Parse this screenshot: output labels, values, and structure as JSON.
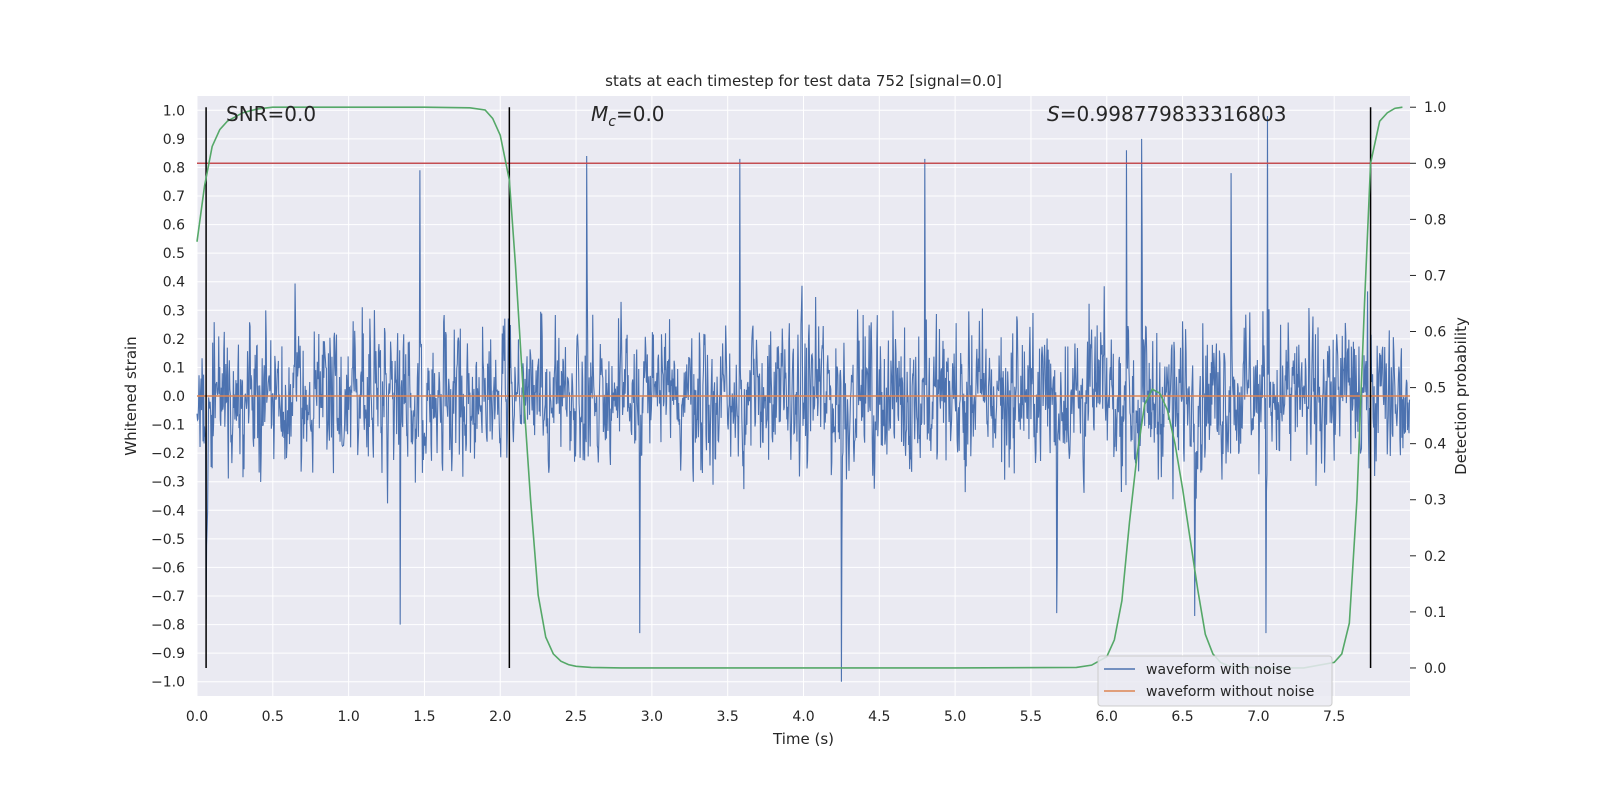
{
  "chart_data": {
    "type": "line",
    "title": "stats at each timestep for test data 752 [signal=0.0]",
    "xlabel": "Time (s)",
    "ylabel": "Whitened strain",
    "y2label": "Detection probability",
    "xlim": [
      0.0,
      8.0
    ],
    "ylim": [
      -1.05,
      1.05
    ],
    "y2lim": [
      -0.05,
      1.02
    ],
    "xticks": [
      0.0,
      0.5,
      1.0,
      1.5,
      2.0,
      2.5,
      3.0,
      3.5,
      4.0,
      4.5,
      5.0,
      5.5,
      6.0,
      6.5,
      7.0,
      7.5
    ],
    "yticks": [
      -1.0,
      -0.9,
      -0.8,
      -0.7,
      -0.6,
      -0.5,
      -0.4,
      -0.3,
      -0.2,
      -0.1,
      0.0,
      0.1,
      0.2,
      0.3,
      0.4,
      0.5,
      0.6,
      0.7,
      0.8,
      0.9,
      1.0
    ],
    "y2ticks": [
      0.0,
      0.1,
      0.2,
      0.3,
      0.4,
      0.5,
      0.6,
      0.7,
      0.8,
      0.9,
      1.0
    ],
    "grid": true,
    "legend_position": "lower right",
    "annotations": {
      "snr": "SNR=0.0",
      "mc_symbol": "M",
      "mc_sub": "c",
      "mc_value": "=0.0",
      "s_symbol": "S",
      "s_value": "=0.998779833316803"
    },
    "threshold": {
      "axis": "right",
      "value": 0.9
    },
    "vlines": [
      0.06,
      2.06,
      7.74
    ],
    "series": [
      {
        "name": "waveform with noise",
        "axis": "left",
        "color": "#4c72b0",
        "style": "noise",
        "approx_envelope": {
          "x": [
            0.0,
            8.0
          ],
          "typical_abs_max": 0.55
        },
        "peaks": [
          {
            "x": 0.06,
            "y": -0.78
          },
          {
            "x": 1.47,
            "y": 0.79
          },
          {
            "x": 1.34,
            "y": -0.8
          },
          {
            "x": 2.57,
            "y": 0.84
          },
          {
            "x": 2.92,
            "y": -0.83
          },
          {
            "x": 3.58,
            "y": 0.83
          },
          {
            "x": 4.25,
            "y": -1.0
          },
          {
            "x": 4.8,
            "y": 0.83
          },
          {
            "x": 6.13,
            "y": 0.86
          },
          {
            "x": 6.23,
            "y": 0.9
          },
          {
            "x": 6.82,
            "y": 0.78
          },
          {
            "x": 7.06,
            "y": 0.98
          },
          {
            "x": 7.05,
            "y": -0.83
          },
          {
            "x": 5.67,
            "y": -0.76
          },
          {
            "x": 6.58,
            "y": -0.77
          }
        ]
      },
      {
        "name": "waveform without noise",
        "axis": "left",
        "color": "#dd8452",
        "x": [
          0.0,
          8.0
        ],
        "y": [
          0.0,
          0.0
        ]
      },
      {
        "name": "",
        "axis": "right",
        "color": "#55a868",
        "x": [
          0.0,
          0.05,
          0.1,
          0.15,
          0.2,
          0.3,
          0.4,
          0.5,
          1.0,
          1.5,
          1.8,
          1.9,
          1.95,
          2.0,
          2.06,
          2.1,
          2.15,
          2.2,
          2.25,
          2.3,
          2.35,
          2.4,
          2.45,
          2.5,
          2.6,
          2.8,
          3.0,
          4.0,
          5.0,
          5.8,
          5.9,
          6.0,
          6.05,
          6.1,
          6.15,
          6.2,
          6.25,
          6.3,
          6.35,
          6.4,
          6.45,
          6.5,
          6.55,
          6.6,
          6.65,
          6.7,
          6.75,
          6.8,
          7.0,
          7.3,
          7.5,
          7.55,
          7.6,
          7.65,
          7.7,
          7.74,
          7.8,
          7.85,
          7.9,
          7.95
        ],
        "y": [
          0.76,
          0.86,
          0.93,
          0.96,
          0.975,
          0.99,
          0.997,
          1.0,
          1.0,
          1.0,
          0.999,
          0.995,
          0.98,
          0.95,
          0.87,
          0.72,
          0.5,
          0.3,
          0.13,
          0.055,
          0.025,
          0.012,
          0.006,
          0.003,
          0.001,
          0.0,
          0.0,
          0.0,
          0.0,
          0.001,
          0.005,
          0.02,
          0.05,
          0.12,
          0.26,
          0.38,
          0.47,
          0.497,
          0.49,
          0.46,
          0.4,
          0.32,
          0.23,
          0.14,
          0.06,
          0.025,
          0.01,
          0.004,
          0.0,
          0.0,
          0.01,
          0.025,
          0.08,
          0.3,
          0.65,
          0.9,
          0.975,
          0.99,
          0.998,
          1.0
        ]
      }
    ]
  }
}
